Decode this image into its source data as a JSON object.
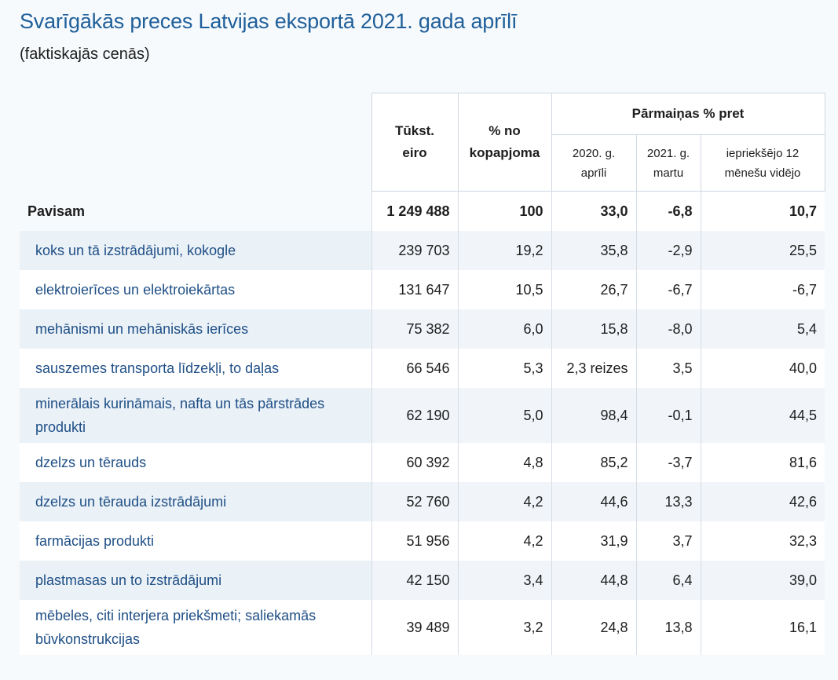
{
  "title": "Svarīgākās preces Latvijas eksportā 2021. gada aprīlī",
  "subtitle": "(faktiskajās cenās)",
  "header": {
    "tukst": [
      "Tūkst.",
      "eiro"
    ],
    "pct": [
      "% no",
      "kopapjoma"
    ],
    "change_group": "Pārmaiņas % pret",
    "apr": [
      "2020. g.",
      "aprīli"
    ],
    "mar": [
      "2021. g.",
      "martu"
    ],
    "avg": [
      "iepriekšējo 12",
      "mēnešu vidējo"
    ]
  },
  "total": {
    "label": "Pavisam",
    "tukst": "1 249 488",
    "pct": "100",
    "apr": "33,0",
    "mar": "-6,8",
    "avg": "10,7"
  },
  "rows": [
    {
      "label": "koks un tā izstrādājumi, kokogle",
      "tukst": "239 703",
      "pct": "19,2",
      "apr": "35,8",
      "mar": "-2,9",
      "avg": "25,5"
    },
    {
      "label": "elektroierīces un elektroiekārtas",
      "tukst": "131 647",
      "pct": "10,5",
      "apr": "26,7",
      "mar": "-6,7",
      "avg": "-6,7"
    },
    {
      "label": "mehānismi un mehāniskās ierīces",
      "tukst": "75 382",
      "pct": "6,0",
      "apr": "15,8",
      "mar": "-8,0",
      "avg": "5,4"
    },
    {
      "label": "sauszemes transporta līdzekļi, to daļas",
      "tukst": "66 546",
      "pct": "5,3",
      "apr": "2,3 reizes",
      "mar": "3,5",
      "avg": "40,0"
    },
    {
      "label": "minerālais kurināmais, nafta un tās pārstrādes produkti",
      "tukst": "62 190",
      "pct": "5,0",
      "apr": "98,4",
      "mar": "-0,1",
      "avg": "44,5"
    },
    {
      "label": "dzelzs un tērauds",
      "tukst": "60 392",
      "pct": "4,8",
      "apr": "85,2",
      "mar": "-3,7",
      "avg": "81,6"
    },
    {
      "label": "dzelzs un tērauda izstrādājumi",
      "tukst": "52 760",
      "pct": "4,2",
      "apr": "44,6",
      "mar": "13,3",
      "avg": "42,6"
    },
    {
      "label": "farmācijas produkti",
      "tukst": "51 956",
      "pct": "4,2",
      "apr": "31,9",
      "mar": "3,7",
      "avg": "32,3"
    },
    {
      "label": "plastmasas un to izstrādājumi",
      "tukst": "42 150",
      "pct": "3,4",
      "apr": "44,8",
      "mar": "6,4",
      "avg": "39,0"
    },
    {
      "label": "mēbeles, citi interjera priekšmeti; saliekamās būvkonstrukcijas",
      "tukst": "39 489",
      "pct": "3,2",
      "apr": "24,8",
      "mar": "13,8",
      "avg": "16,1"
    }
  ]
}
